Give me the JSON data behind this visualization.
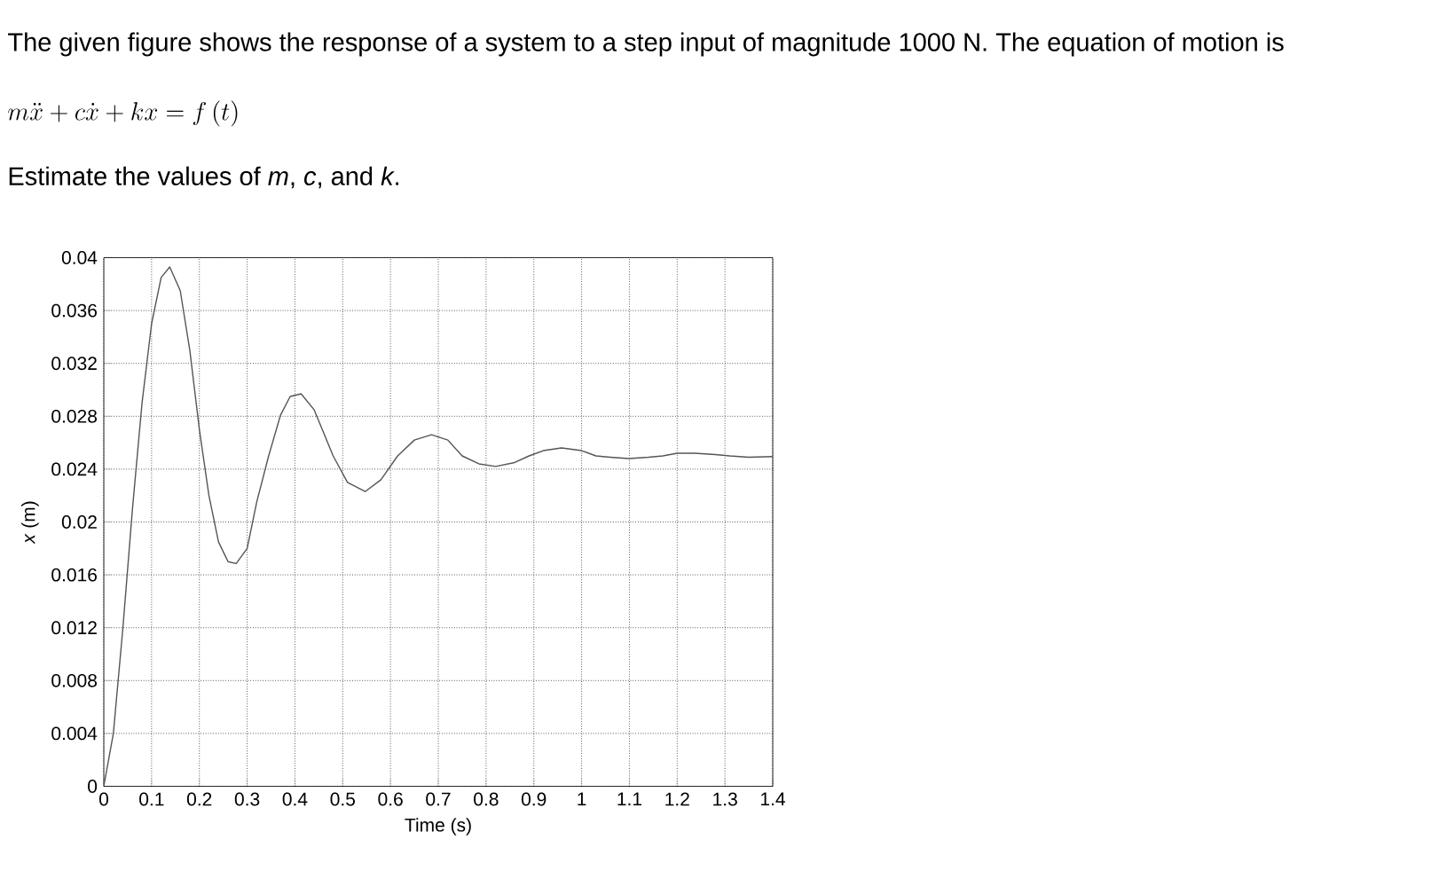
{
  "chart_data": {
    "type": "line",
    "title": "The given figure shows the response of a system to a step input of magnitude 1000 N. The equation of motion is",
    "annotations": [
      "m\\ddot{x} + c\\dot{x} + kx = f\\,(t)",
      "Estimate the values of *m*, *c*, and *k*."
    ],
    "xlabel": "Time (s)",
    "ylabel": "*x* (m)",
    "x": [
      0,
      0.02,
      0.04,
      0.06,
      0.08,
      0.1,
      0.12,
      0.138,
      0.16,
      0.18,
      0.2,
      0.22,
      0.24,
      0.26,
      0.277,
      0.3,
      0.32,
      0.345,
      0.37,
      0.39,
      0.413,
      0.44,
      0.48,
      0.51,
      0.547,
      0.58,
      0.615,
      0.65,
      0.686,
      0.72,
      0.75,
      0.785,
      0.82,
      0.86,
      0.89,
      0.92,
      0.958,
      1.0,
      1.03,
      1.06,
      1.099,
      1.14,
      1.17,
      1.2,
      1.237,
      1.28,
      1.31,
      1.35,
      1.4
    ],
    "values": [
      0,
      0.004,
      0.012,
      0.021,
      0.029,
      0.035,
      0.0385,
      0.0393,
      0.0375,
      0.033,
      0.027,
      0.022,
      0.0185,
      0.017,
      0.01685,
      0.018,
      0.0215,
      0.025,
      0.0281,
      0.0295,
      0.0297,
      0.0285,
      0.025,
      0.023,
      0.0223,
      0.0232,
      0.025,
      0.0262,
      0.0266,
      0.0262,
      0.025,
      0.0244,
      0.0242,
      0.0245,
      0.025,
      0.0254,
      0.0256,
      0.0254,
      0.025,
      0.0249,
      0.0248,
      0.0249,
      0.025,
      0.0252,
      0.0252,
      0.0251,
      0.025,
      0.0249,
      0.02495
    ],
    "color": "#555555",
    "xlim": [
      0,
      1.4
    ],
    "ylim": [
      0,
      0.04
    ],
    "xticks": [
      0,
      0.1,
      0.2,
      0.3,
      0.4,
      0.5,
      0.6,
      0.7,
      0.8,
      0.9,
      1,
      1.1,
      1.2,
      1.3,
      1.4
    ],
    "yticks": [
      0,
      0.004,
      0.008,
      0.012,
      0.016,
      0.02,
      0.024,
      0.028,
      0.032,
      0.036,
      0.04
    ],
    "grid": true,
    "marker": "none",
    "line_style": "solid"
  }
}
